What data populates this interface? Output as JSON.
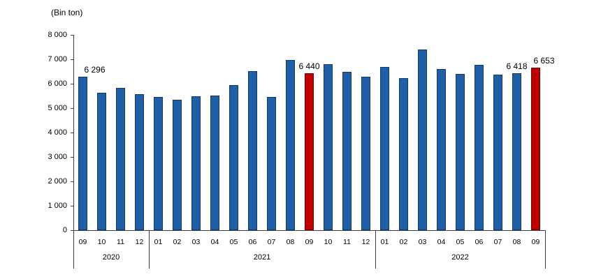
{
  "chart_data": {
    "type": "bar",
    "title": "",
    "unit_label": "(Bin ton)",
    "ylabel": "Bin ton",
    "ylim": [
      0,
      8000
    ],
    "ytick_step": 1000,
    "ytick_labels": [
      "0",
      "1 000",
      "2 000",
      "3 000",
      "4 000",
      "5 000",
      "6 000",
      "7 000",
      "8 000"
    ],
    "grid": false,
    "categories": [
      "09",
      "10",
      "11",
      "12",
      "01",
      "02",
      "03",
      "04",
      "05",
      "06",
      "07",
      "08",
      "09",
      "10",
      "11",
      "12",
      "01",
      "02",
      "03",
      "04",
      "05",
      "06",
      "07",
      "08",
      "09"
    ],
    "values": [
      6296,
      5620,
      5830,
      5570,
      5450,
      5330,
      5490,
      5520,
      5950,
      6520,
      5450,
      6970,
      6440,
      6810,
      6480,
      6290,
      6690,
      6240,
      7400,
      6600,
      6400,
      6760,
      6360,
      6418,
      6653
    ],
    "year_groups": [
      {
        "label": "2020",
        "count": 4
      },
      {
        "label": "2021",
        "count": 12
      },
      {
        "label": "2022",
        "count": 9
      }
    ],
    "highlighted_indices": [
      12,
      24
    ],
    "data_labels": [
      {
        "index": 0,
        "text": "6 296",
        "dx": 17
      },
      {
        "index": 12,
        "text": "6 440",
        "dx": 0
      },
      {
        "index": 23,
        "text": "6 418",
        "dx": 0
      },
      {
        "index": 24,
        "text": "6 653",
        "dx": 12
      }
    ],
    "colors": {
      "bar": "#1f5fa8",
      "bar_border": "#123a66",
      "highlight": "#c00000",
      "highlight_border": "#6d0000",
      "axis": "#3f3f3f"
    },
    "legend": null
  }
}
